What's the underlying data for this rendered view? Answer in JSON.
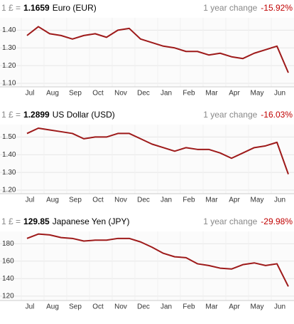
{
  "chart_data": [
    {
      "type": "line",
      "prefix": "1 £ =",
      "rate": 1.1659,
      "currency": "Euro (EUR)",
      "change_label": "1 year change",
      "change": "-15.92%",
      "categories": [
        "Jul",
        null,
        "Aug",
        null,
        "Sep",
        null,
        "Oct",
        null,
        "Nov",
        null,
        "Dec",
        null,
        "Jan",
        null,
        "Feb",
        null,
        "Mar",
        null,
        "Apr",
        null,
        "May",
        null,
        "Jun",
        null
      ],
      "series": [
        {
          "color": "#9e1a1a",
          "values": [
            1.37,
            1.42,
            1.38,
            1.37,
            1.35,
            1.37,
            1.38,
            1.36,
            1.4,
            1.41,
            1.35,
            1.33,
            1.31,
            1.3,
            1.28,
            1.28,
            1.26,
            1.27,
            1.25,
            1.24,
            1.27,
            1.29,
            1.31,
            1.16
          ]
        }
      ],
      "ylim": [
        1.08,
        1.47
      ],
      "yticks": [
        {
          "value": 1.1,
          "label": "1.10"
        },
        {
          "value": 1.2,
          "label": "1.20"
        },
        {
          "value": 1.3,
          "label": "1.30"
        },
        {
          "value": 1.4,
          "label": "1.40"
        }
      ],
      "grid": true
    },
    {
      "type": "line",
      "prefix": "1 £ =",
      "rate": 1.2899,
      "currency": "US Dollar (USD)",
      "change_label": "1 year change",
      "change": "-16.03%",
      "categories": [
        "Jul",
        null,
        "Aug",
        null,
        "Sep",
        null,
        "Oct",
        null,
        "Nov",
        null,
        "Dec",
        null,
        "Jan",
        null,
        "Feb",
        null,
        "Mar",
        null,
        "Apr",
        null,
        "May",
        null,
        "Jun",
        null
      ],
      "series": [
        {
          "color": "#9e1a1a",
          "values": [
            1.52,
            1.55,
            1.54,
            1.53,
            1.52,
            1.49,
            1.5,
            1.5,
            1.52,
            1.52,
            1.49,
            1.46,
            1.44,
            1.42,
            1.44,
            1.43,
            1.43,
            1.41,
            1.38,
            1.41,
            1.44,
            1.45,
            1.47,
            1.29
          ]
        }
      ],
      "ylim": [
        1.18,
        1.57
      ],
      "yticks": [
        {
          "value": 1.2,
          "label": "1.20"
        },
        {
          "value": 1.3,
          "label": "1.30"
        },
        {
          "value": 1.4,
          "label": "1.40"
        },
        {
          "value": 1.5,
          "label": "1.50"
        }
      ],
      "grid": true
    },
    {
      "type": "line",
      "prefix": "1 £ =",
      "rate": 129.85,
      "currency": "Japanese Yen (JPY)",
      "change_label": "1 year change",
      "change": "-29.98%",
      "categories": [
        "Jul",
        null,
        "Aug",
        null,
        "Sep",
        null,
        "Oct",
        null,
        "Nov",
        null,
        "Dec",
        null,
        "Jan",
        null,
        "Feb",
        null,
        "Mar",
        null,
        "Apr",
        null,
        "May",
        null,
        "Jun",
        null
      ],
      "series": [
        {
          "color": "#9e1a1a",
          "values": [
            186,
            191,
            190,
            187,
            186,
            183,
            184,
            184,
            186,
            186,
            182,
            176,
            169,
            165,
            164,
            157,
            155,
            152,
            151,
            156,
            158,
            155,
            157,
            131
          ]
        }
      ],
      "ylim": [
        115,
        194
      ],
      "yticks": [
        120,
        140,
        160,
        180
      ],
      "grid": true
    }
  ]
}
